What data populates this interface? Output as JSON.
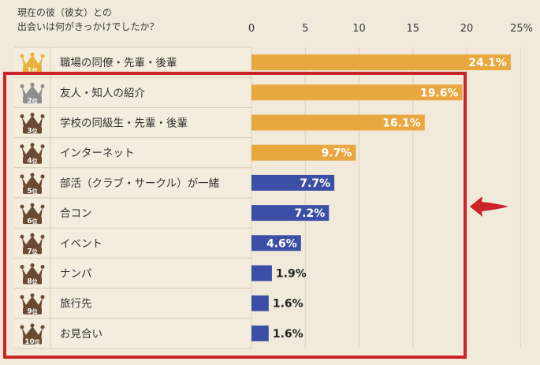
{
  "question": {
    "line1": "現在の彼（彼女）との",
    "line2": "出会いは何がきっかけでしたか？"
  },
  "colors": {
    "background": "#f1eadb",
    "row_label_bg": "#f4ecdc",
    "row_border": "#d8cdb5",
    "bar_orange": "#e9a73f",
    "bar_blue": "#3c4fa6",
    "highlight_red": "#cc2329",
    "crown_gold": "#e8b23c",
    "crown_silver": "#8e8e8e",
    "crown_bronze": "#6a4a32"
  },
  "chart_data": {
    "type": "bar",
    "orientation": "horizontal",
    "x_ticks": [
      "0",
      "5",
      "10",
      "15",
      "20",
      "25%"
    ],
    "xlim": [
      0,
      25
    ],
    "grid": true,
    "rows": [
      {
        "rank": "1",
        "rank_suffix": "位",
        "label": "職場の同僚・先輩・後輩",
        "value": 24.1,
        "value_label": "24.1%",
        "color": "orange",
        "crown": "gold"
      },
      {
        "rank": "2",
        "rank_suffix": "位",
        "label": "友人・知人の紹介",
        "value": 19.6,
        "value_label": "19.6%",
        "color": "orange",
        "crown": "silver"
      },
      {
        "rank": "3",
        "rank_suffix": "位",
        "label": "学校の同級生・先輩・後輩",
        "value": 16.1,
        "value_label": "16.1%",
        "color": "orange",
        "crown": "bronze"
      },
      {
        "rank": "4",
        "rank_suffix": "位",
        "label": "インターネット",
        "value": 9.7,
        "value_label": "9.7%",
        "color": "orange",
        "crown": "bronze"
      },
      {
        "rank": "5",
        "rank_suffix": "位",
        "label": "部活（クラブ・サークル）が一緒",
        "value": 7.7,
        "value_label": "7.7%",
        "color": "blue",
        "crown": "bronze"
      },
      {
        "rank": "6",
        "rank_suffix": "位",
        "label": "合コン",
        "value": 7.2,
        "value_label": "7.2%",
        "color": "blue",
        "crown": "bronze"
      },
      {
        "rank": "7",
        "rank_suffix": "位",
        "label": "イベント",
        "value": 4.6,
        "value_label": "4.6%",
        "color": "blue",
        "crown": "bronze"
      },
      {
        "rank": "8",
        "rank_suffix": "位",
        "label": "ナンパ",
        "value": 1.9,
        "value_label": "1.9%",
        "color": "blue",
        "crown": "bronze"
      },
      {
        "rank": "9",
        "rank_suffix": "位",
        "label": "旅行先",
        "value": 1.6,
        "value_label": "1.6%",
        "color": "blue",
        "crown": "bronze"
      },
      {
        "rank": "10",
        "rank_suffix": "位",
        "label": "お見合い",
        "value": 1.6,
        "value_label": "1.6%",
        "color": "blue",
        "crown": "bronze"
      }
    ]
  }
}
